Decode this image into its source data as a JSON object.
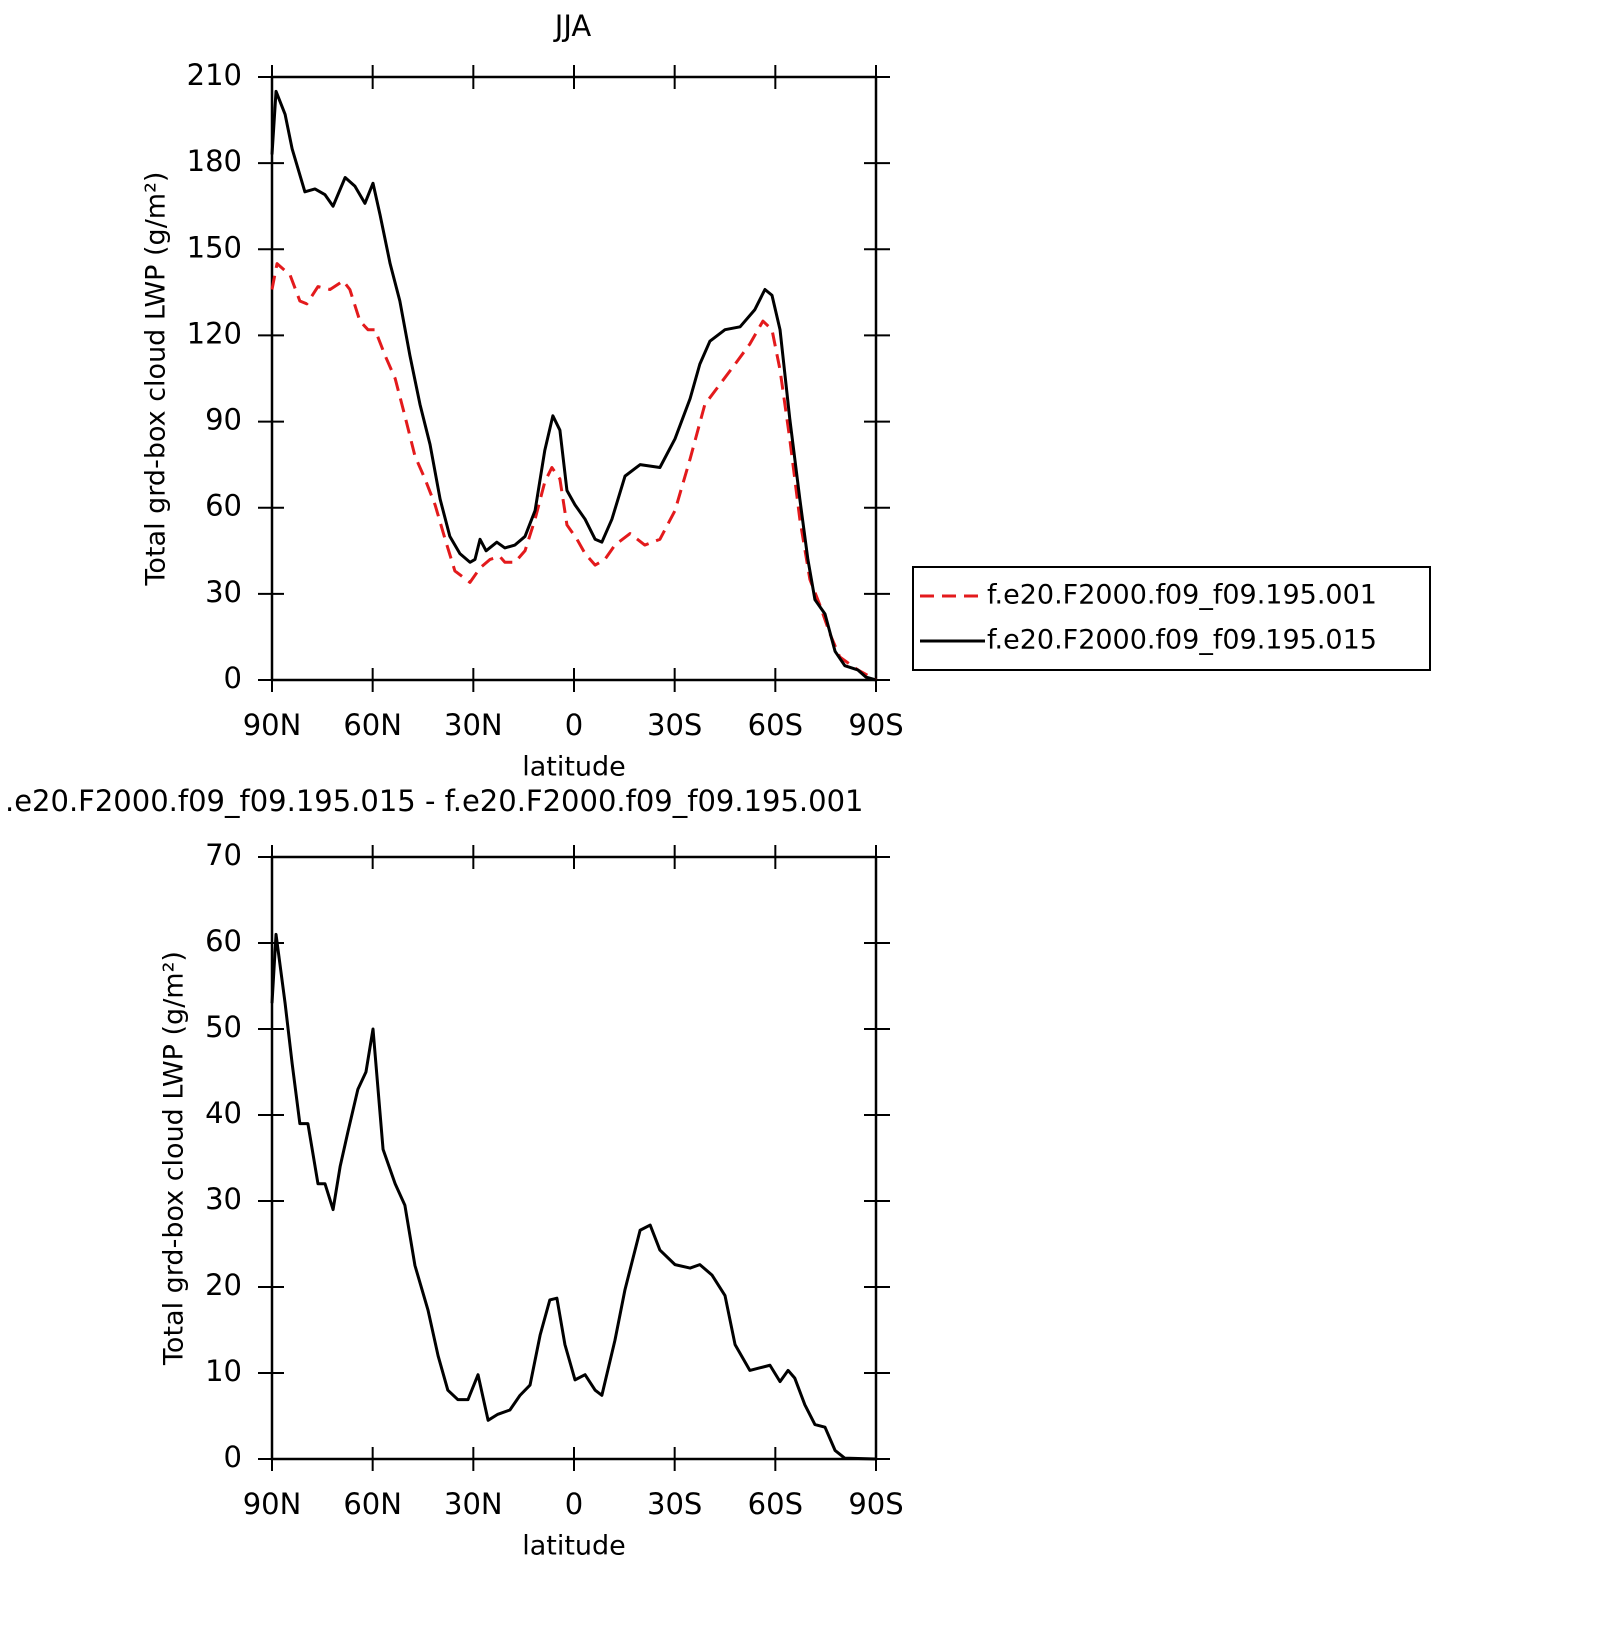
{
  "chart_data": [
    {
      "type": "line",
      "title": "JJA",
      "xlabel": "latitude",
      "ylabel": "Total grd-box cloud LWP (g/m²)",
      "xlim": [
        90,
        -90
      ],
      "xticks": [
        {
          "value": 90,
          "label": "90N"
        },
        {
          "value": 60,
          "label": "60N"
        },
        {
          "value": 30,
          "label": "30N"
        },
        0,
        {
          "value": -30,
          "label": "30S"
        },
        {
          "value": -60,
          "label": "60S"
        },
        {
          "value": -90,
          "label": "90S"
        }
      ],
      "ylim": [
        0,
        210
      ],
      "yticks": [
        0,
        30,
        60,
        90,
        120,
        150,
        180,
        210
      ],
      "legend": "right",
      "series": [
        {
          "name": "f.e20.F2000.f09_f09.195.001",
          "color": "#e31a1c",
          "dash": "dashed",
          "x": [
            90,
            88.5,
            84.6,
            81.7,
            79.6,
            76.3,
            72.7,
            68.8,
            66.8,
            63.8,
            61.4,
            59.3,
            56.3,
            53.3,
            50.4,
            47.4,
            44.4,
            41.4,
            38.4,
            35.5,
            31,
            28,
            25,
            22.1,
            20.6,
            17.6,
            14.6,
            11.6,
            8.7,
            6.6,
            4.2,
            2.1,
            -0.9,
            -3.3,
            -6.3,
            -9.2,
            -12.2,
            -16.7,
            -21.1,
            -25.6,
            -30.1,
            -34.6,
            -39,
            -43.5,
            -48,
            -52.4,
            -56.3,
            -59,
            -61.4,
            -64.3,
            -67.3,
            -70.3,
            -73.3,
            -76.3,
            -79.2,
            -84.6,
            -90
          ],
          "values": [
            136,
            145,
            141,
            132,
            131,
            137,
            136,
            139,
            136,
            125,
            122,
            122,
            113,
            105,
            92,
            78,
            70,
            61,
            49,
            38,
            34,
            39,
            42,
            43,
            41,
            41,
            45,
            56,
            69,
            74,
            70,
            54,
            49,
            44,
            40,
            42,
            47,
            51,
            47,
            49,
            59,
            77,
            96,
            103,
            110,
            117,
            125,
            122,
            108,
            84,
            56,
            35,
            26,
            16,
            8,
            3.5,
            0
          ]
        },
        {
          "name": "f.e20.F2000.f09_f09.195.015",
          "color": "#000000",
          "dash": "solid",
          "x": [
            90,
            88.8,
            86.1,
            84,
            80.2,
            77.2,
            74.2,
            71.8,
            68.2,
            65.3,
            62.3,
            59.9,
            57.8,
            54.8,
            51.9,
            48.9,
            45.9,
            42.9,
            39.9,
            37,
            34,
            31,
            29.5,
            28,
            26.2,
            23,
            20.6,
            17.6,
            14.6,
            11.6,
            8.7,
            6.3,
            4.2,
            2.1,
            -0.3,
            -3.3,
            -6.3,
            -8.3,
            -11.3,
            -15.2,
            -19.7,
            -25.6,
            -30.1,
            -34.6,
            -37.5,
            -40.5,
            -45,
            -49.5,
            -53.9,
            -56.9,
            -59,
            -61.4,
            -64.3,
            -67.3,
            -69.7,
            -71.8,
            -74.8,
            -77.8,
            -80.7,
            -84.6,
            -87,
            -90
          ],
          "values": [
            183,
            205,
            197,
            185,
            170,
            171,
            169,
            165,
            175,
            172,
            166,
            173,
            162,
            145,
            132,
            113,
            96,
            82,
            63,
            50,
            44,
            41,
            42,
            49,
            45,
            48,
            46,
            47,
            50,
            59,
            80,
            92,
            87,
            66,
            61,
            56,
            49,
            48,
            56,
            71,
            75,
            74,
            84,
            98,
            110,
            118,
            122,
            123,
            129,
            136,
            134,
            122,
            91,
            63,
            42,
            28,
            23,
            10,
            5,
            3.5,
            1,
            0
          ]
        }
      ]
    },
    {
      "type": "line",
      "title": ".e20.F2000.f09_f09.195.015 - f.e20.F2000.f09_f09.195.001",
      "xlabel": "latitude",
      "ylabel": "Total grd-box cloud LWP (g/m²)",
      "xlim": [
        90,
        -90
      ],
      "xticks": [
        {
          "value": 90,
          "label": "90N"
        },
        {
          "value": 60,
          "label": "60N"
        },
        {
          "value": 30,
          "label": "30N"
        },
        0,
        {
          "value": -30,
          "label": "30S"
        },
        {
          "value": -60,
          "label": "60S"
        },
        {
          "value": -90,
          "label": "90S"
        }
      ],
      "ylim": [
        0,
        70
      ],
      "yticks": [
        0,
        10,
        20,
        30,
        40,
        50,
        60,
        70
      ],
      "series": [
        {
          "color": "#000000",
          "dash": "solid",
          "x": [
            90,
            88.8,
            86.1,
            84,
            81.7,
            79.3,
            76.3,
            74.2,
            71.8,
            69.7,
            67.4,
            64.4,
            62,
            59.9,
            56.9,
            53.3,
            50.4,
            47.4,
            43.5,
            40.5,
            37.6,
            34.6,
            31.6,
            28.6,
            25.6,
            22.7,
            19.1,
            16.1,
            13.1,
            10.1,
            7.2,
            5.1,
            2.7,
            -0.3,
            -3.3,
            -6.3,
            -8.3,
            -12.2,
            -15.2,
            -19.7,
            -22.7,
            -25.6,
            -30.1,
            -34.6,
            -37.5,
            -41.1,
            -45,
            -48,
            -52.4,
            -55.4,
            -58.4,
            -61.4,
            -63.8,
            -65.8,
            -68.8,
            -71.8,
            -74.8,
            -77.8,
            -80.7,
            -90
          ],
          "values": [
            53,
            61,
            53,
            46,
            39,
            39,
            32,
            32,
            29,
            34,
            38,
            43,
            45,
            50,
            36,
            32,
            29.5,
            22.5,
            17.3,
            12,
            8,
            6.9,
            6.9,
            9.8,
            4.5,
            5.2,
            5.7,
            7.4,
            8.6,
            14.4,
            18.5,
            18.7,
            13.3,
            9.2,
            9.8,
            8,
            7.4,
            13.8,
            19.7,
            26.6,
            27.2,
            24.3,
            22.6,
            22.2,
            22.6,
            21.4,
            19,
            13.3,
            10.3,
            10.6,
            10.9,
            9,
            10.3,
            9.4,
            6.3,
            4,
            3.7,
            1,
            0.1,
            0
          ]
        }
      ]
    }
  ]
}
